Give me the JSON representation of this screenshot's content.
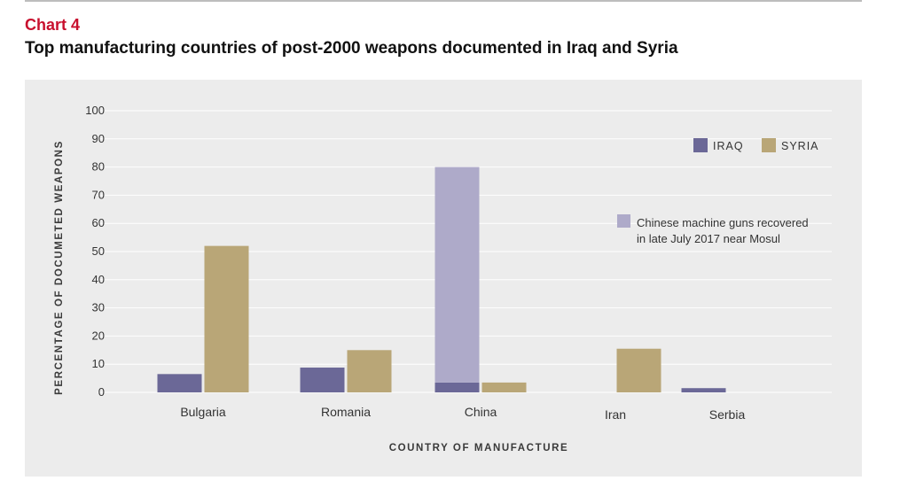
{
  "header": {
    "chart_number": "Chart 4",
    "title": "Top manufacturing countries of post-2000 weapons documented in Iraq and Syria"
  },
  "colors": {
    "accent": "#c8102e",
    "iraq": "#6b6897",
    "syria": "#b9a677",
    "china_machine_guns": "#aeaac9",
    "panel": "#ececec",
    "grid": "#ffffff"
  },
  "chart_data": {
    "type": "bar",
    "xlabel": "COUNTRY OF MANUFACTURE",
    "ylabel": "PERCENTAGE OF DOCUMETED WEAPONS",
    "ylim": [
      0,
      100
    ],
    "yticks": [
      0,
      10,
      20,
      30,
      40,
      50,
      60,
      70,
      80,
      90,
      100
    ],
    "grid": true,
    "legend_position": "top-right",
    "categories": [
      "Bulgaria",
      "Romania",
      "China",
      "Iran",
      "Serbia"
    ],
    "series": [
      {
        "name": "IRAQ",
        "values": [
          6.5,
          8.8,
          3.5,
          0,
          1.5
        ]
      },
      {
        "name": "SYRIA",
        "values": [
          52,
          15,
          3.5,
          15.5,
          0
        ]
      }
    ],
    "stacked_on": [
      {
        "category": "China",
        "base_series": "IRAQ",
        "value": 76.5,
        "label": "Chinese machine guns recovered in late July 2017 near Mosul"
      }
    ],
    "annotation": {
      "line1": "Chinese machine guns recovered",
      "line2": "in late July 2017 near Mosul"
    }
  }
}
